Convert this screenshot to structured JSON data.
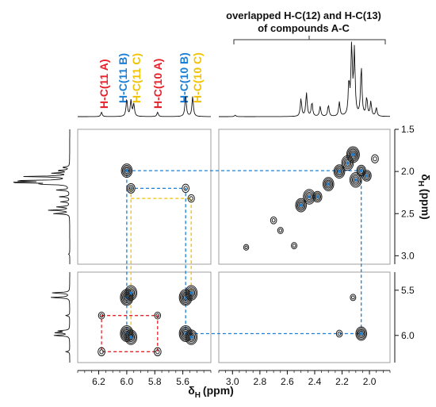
{
  "chart_data": {
    "type": "heatmap",
    "title": "",
    "annotation": {
      "line1": "overlapped H-C(12) and H-C(13)",
      "line2": "of compounds A-C"
    },
    "peak_labels": [
      {
        "text": "H-C(11 A)",
        "color": "#e8202a",
        "ppm": 6.18
      },
      {
        "text": "H-C(11 B)",
        "color": "#1a7fd4",
        "ppm": 6.0
      },
      {
        "text": "H-C(11 C)",
        "color": "#f2c200",
        "ppm": 5.96
      },
      {
        "text": "H-C(10 A)",
        "color": "#e8202a",
        "ppm": 5.78
      },
      {
        "text": "H-C(10 B)",
        "color": "#1a7fd4",
        "ppm": 5.58
      },
      {
        "text": "H-C(10 C)",
        "color": "#f2c200",
        "ppm": 5.53
      }
    ],
    "x_axis": {
      "label_main": "δ",
      "label_sub": "H",
      "label_unit": "(ppm)",
      "left_panel": {
        "xlim": [
          6.35,
          5.4
        ],
        "ticks": [
          "6.2",
          "6.0",
          "5.8",
          "5.6"
        ]
      },
      "right_panel": {
        "xlim": [
          3.1,
          1.85
        ],
        "ticks": [
          "3.0",
          "2.8",
          "2.6",
          "2.4",
          "2.2",
          "2.0"
        ]
      }
    },
    "y_axis": {
      "label_main": "δ",
      "label_sub": "H",
      "label_unit": "(ppm)",
      "upper_panel": {
        "ylim": [
          1.5,
          3.1
        ],
        "ticks": [
          "1.5",
          "2.0",
          "2.5",
          "3.0"
        ]
      },
      "lower_panel": {
        "ylim": [
          5.3,
          6.3
        ],
        "ticks": [
          "5.5",
          "6.0"
        ]
      }
    },
    "cross_peaks": [
      {
        "x": 6.0,
        "y": 1.99,
        "intensity": 0.8
      },
      {
        "x": 5.97,
        "y": 2.2,
        "intensity": 0.5
      },
      {
        "x": 5.58,
        "y": 2.2,
        "intensity": 0.4
      },
      {
        "x": 5.54,
        "y": 2.32,
        "intensity": 0.35
      },
      {
        "x": 6.18,
        "y": 5.78,
        "intensity": 0.3
      },
      {
        "x": 6.18,
        "y": 6.18,
        "intensity": 0.4
      },
      {
        "x": 6.0,
        "y": 5.58,
        "intensity": 1.0
      },
      {
        "x": 5.97,
        "y": 5.53,
        "intensity": 0.9
      },
      {
        "x": 6.0,
        "y": 5.98,
        "intensity": 1.0
      },
      {
        "x": 5.97,
        "y": 6.02,
        "intensity": 0.9
      },
      {
        "x": 5.78,
        "y": 5.78,
        "intensity": 0.3
      },
      {
        "x": 5.78,
        "y": 6.18,
        "intensity": 0.4
      },
      {
        "x": 5.58,
        "y": 5.58,
        "intensity": 1.0
      },
      {
        "x": 5.54,
        "y": 5.53,
        "intensity": 0.9
      },
      {
        "x": 5.58,
        "y": 5.98,
        "intensity": 1.0
      },
      {
        "x": 5.54,
        "y": 6.02,
        "intensity": 0.9
      },
      {
        "x": 2.06,
        "y": 5.98,
        "intensity": 0.8
      },
      {
        "x": 2.22,
        "y": 5.98,
        "intensity": 0.3
      },
      {
        "x": 2.12,
        "y": 5.58,
        "intensity": 0.25
      },
      {
        "x": 2.06,
        "y": 1.99,
        "intensity": 0.6
      },
      {
        "x": 2.12,
        "y": 1.8,
        "intensity": 1.0
      },
      {
        "x": 2.16,
        "y": 1.9,
        "intensity": 0.9
      },
      {
        "x": 2.1,
        "y": 2.1,
        "intensity": 0.9
      },
      {
        "x": 2.22,
        "y": 2.0,
        "intensity": 0.8
      },
      {
        "x": 2.3,
        "y": 2.15,
        "intensity": 0.8
      },
      {
        "x": 2.44,
        "y": 2.3,
        "intensity": 0.9
      },
      {
        "x": 2.5,
        "y": 2.4,
        "intensity": 0.8
      },
      {
        "x": 2.38,
        "y": 2.3,
        "intensity": 0.6
      },
      {
        "x": 2.02,
        "y": 2.05,
        "intensity": 0.6
      },
      {
        "x": 1.96,
        "y": 1.85,
        "intensity": 0.4
      },
      {
        "x": 2.7,
        "y": 2.58,
        "intensity": 0.3
      },
      {
        "x": 2.65,
        "y": 2.7,
        "intensity": 0.25
      },
      {
        "x": 2.55,
        "y": 2.88,
        "intensity": 0.25
      },
      {
        "x": 2.9,
        "y": 2.9,
        "intensity": 0.2
      }
    ],
    "connection_lines": [
      {
        "color": "#e8202a",
        "points": [
          [
            6.18,
            5.78
          ],
          [
            5.78,
            5.78
          ],
          [
            5.78,
            6.18
          ],
          [
            6.18,
            6.18
          ],
          [
            6.18,
            5.78
          ]
        ]
      },
      {
        "color": "#1a7fd4",
        "points": [
          [
            6.0,
            1.99
          ],
          [
            2.06,
            1.99
          ],
          [
            2.06,
            5.98
          ],
          [
            5.58,
            5.98
          ],
          [
            5.58,
            2.2
          ],
          [
            6.0,
            2.2
          ],
          [
            6.0,
            1.99
          ]
        ]
      },
      {
        "color": "#1a7fd4",
        "points": [
          [
            6.0,
            2.2
          ],
          [
            6.0,
            5.98
          ]
        ]
      },
      {
        "color": "#f2c200",
        "points": [
          [
            5.97,
            2.2
          ],
          [
            5.97,
            6.02
          ]
        ]
      },
      {
        "color": "#f2c200",
        "points": [
          [
            5.97,
            2.32
          ],
          [
            5.54,
            2.32
          ],
          [
            5.54,
            5.53
          ]
        ]
      }
    ],
    "projection_peaks": [
      {
        "ppm": 6.18,
        "h": 0.06
      },
      {
        "ppm": 6.0,
        "h": 0.24
      },
      {
        "ppm": 5.97,
        "h": 0.22
      },
      {
        "ppm": 5.95,
        "h": 0.17
      },
      {
        "ppm": 5.78,
        "h": 0.06
      },
      {
        "ppm": 5.58,
        "h": 0.3
      },
      {
        "ppm": 5.53,
        "h": 0.28
      },
      {
        "ppm": 2.98,
        "h": 0.02
      },
      {
        "ppm": 2.5,
        "h": 0.25
      },
      {
        "ppm": 2.46,
        "h": 0.33
      },
      {
        "ppm": 2.42,
        "h": 0.2
      },
      {
        "ppm": 2.36,
        "h": 0.14
      },
      {
        "ppm": 2.3,
        "h": 0.16
      },
      {
        "ppm": 2.22,
        "h": 0.2
      },
      {
        "ppm": 2.15,
        "h": 0.46
      },
      {
        "ppm": 2.13,
        "h": 0.98
      },
      {
        "ppm": 2.11,
        "h": 0.9
      },
      {
        "ppm": 2.06,
        "h": 0.7
      },
      {
        "ppm": 2.02,
        "h": 0.26
      },
      {
        "ppm": 1.99,
        "h": 0.2
      },
      {
        "ppm": 1.95,
        "h": 0.12
      }
    ],
    "colors": {
      "contour": "#1a1a1a",
      "red": "#e8202a",
      "blue": "#1a7fd4",
      "yellow": "#f2c200"
    }
  }
}
